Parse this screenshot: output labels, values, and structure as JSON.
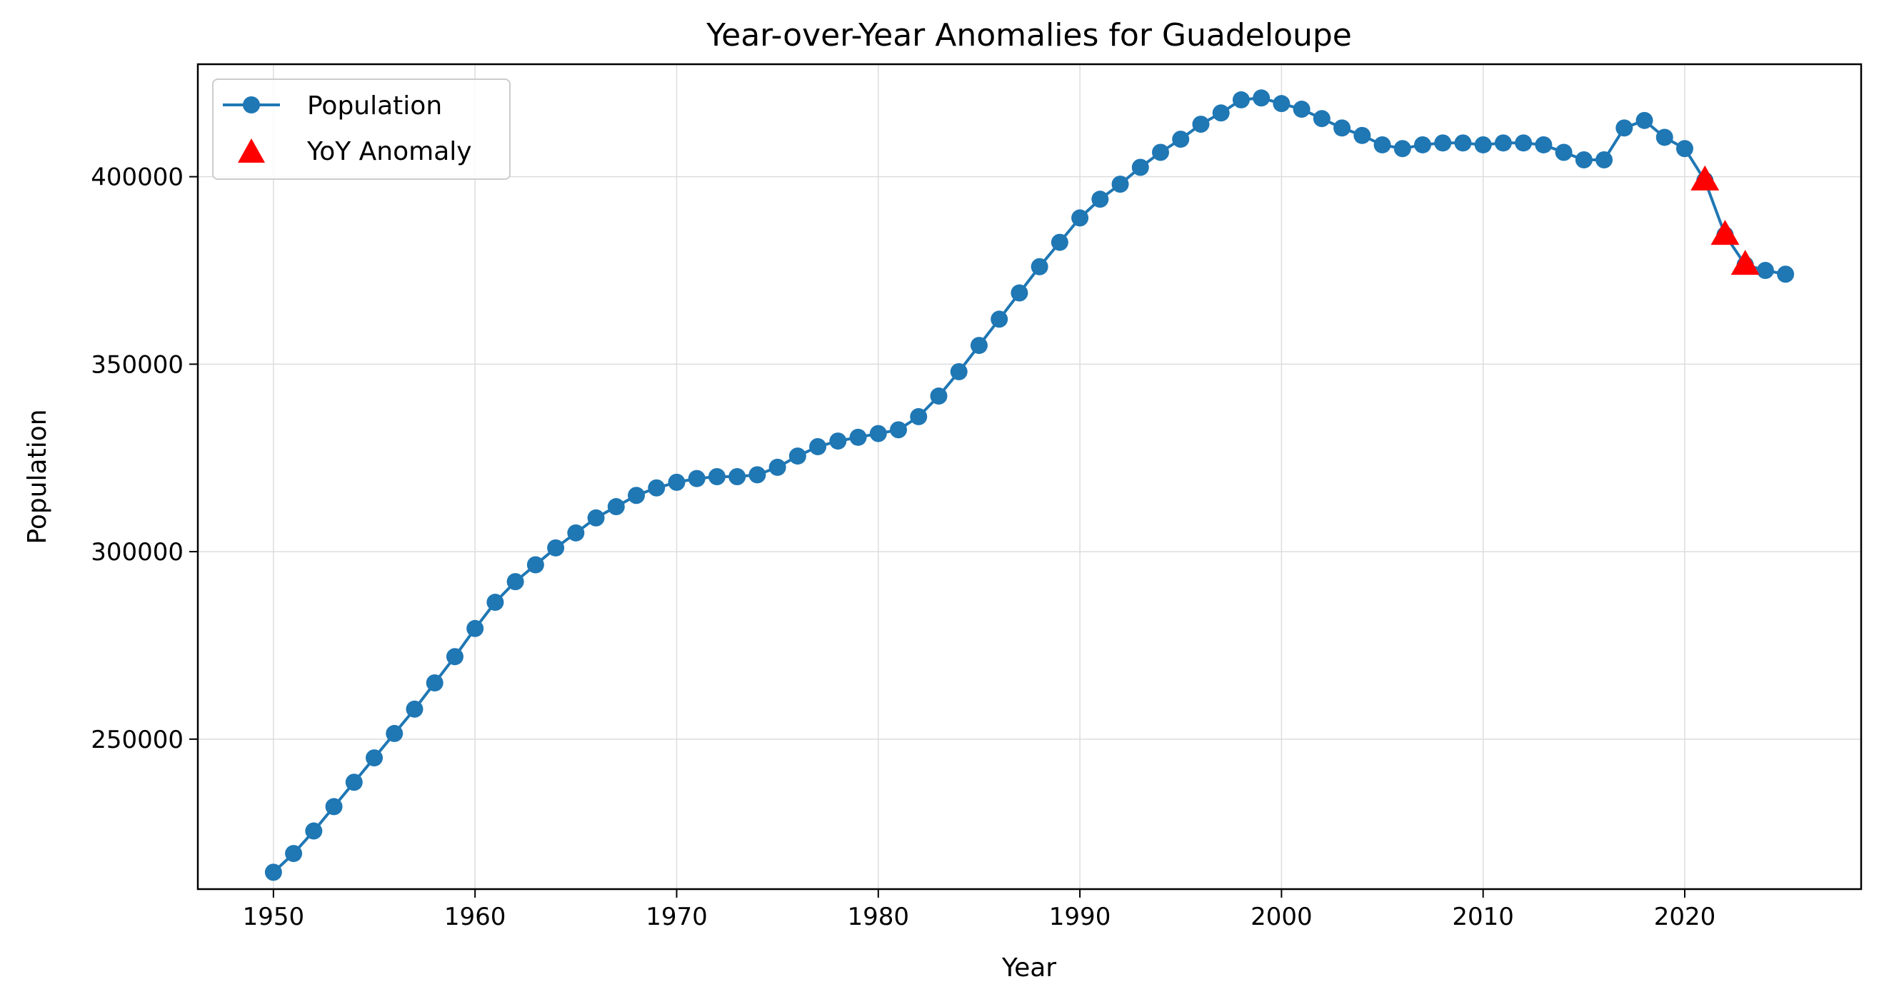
{
  "chart_data": {
    "type": "line",
    "title": "Year-over-Year Anomalies for Guadeloupe",
    "xlabel": "Year",
    "ylabel": "Population",
    "xlim": [
      1946.25,
      2028.75
    ],
    "ylim": [
      210000,
      430000
    ],
    "xticks": [
      1950,
      1960,
      1970,
      1980,
      1990,
      2000,
      2010,
      2020
    ],
    "yticks": [
      250000,
      300000,
      350000,
      400000
    ],
    "grid": true,
    "legend_position": "upper-left",
    "series": [
      {
        "name": "Population",
        "color": "#1f77b4",
        "marker": "circle",
        "x": [
          1950,
          1951,
          1952,
          1953,
          1954,
          1955,
          1956,
          1957,
          1958,
          1959,
          1960,
          1961,
          1962,
          1963,
          1964,
          1965,
          1966,
          1967,
          1968,
          1969,
          1970,
          1971,
          1972,
          1973,
          1974,
          1975,
          1976,
          1977,
          1978,
          1979,
          1980,
          1981,
          1982,
          1983,
          1984,
          1985,
          1986,
          1987,
          1988,
          1989,
          1990,
          1991,
          1992,
          1993,
          1994,
          1995,
          1996,
          1997,
          1998,
          1999,
          2000,
          2001,
          2002,
          2003,
          2004,
          2005,
          2006,
          2007,
          2008,
          2009,
          2010,
          2011,
          2012,
          2013,
          2014,
          2015,
          2016,
          2017,
          2018,
          2019,
          2020,
          2021,
          2022,
          2023,
          2024,
          2025
        ],
        "y": [
          214500,
          219500,
          225500,
          232000,
          238500,
          245000,
          251500,
          258000,
          265000,
          272000,
          279500,
          286500,
          292000,
          296500,
          301000,
          305000,
          309000,
          312000,
          315000,
          317000,
          318500,
          319500,
          320000,
          320000,
          320500,
          322500,
          325500,
          328000,
          329500,
          330500,
          331500,
          332500,
          336000,
          341500,
          348000,
          355000,
          362000,
          369000,
          376000,
          382500,
          389000,
          394000,
          398000,
          402500,
          406500,
          410000,
          414000,
          417000,
          420500,
          421000,
          419500,
          418000,
          415500,
          413000,
          411000,
          408500,
          407500,
          408500,
          409000,
          409000,
          408500,
          409000,
          409000,
          408500,
          406500,
          404500,
          404500,
          413000,
          415000,
          410500,
          407500,
          399000,
          384500,
          376500,
          375000,
          374000
        ]
      },
      {
        "name": "YoY Anomaly",
        "color": "#ff0000",
        "marker": "triangle",
        "x": [
          2021,
          2022,
          2023
        ],
        "y": [
          399000,
          384500,
          376500
        ]
      }
    ]
  }
}
